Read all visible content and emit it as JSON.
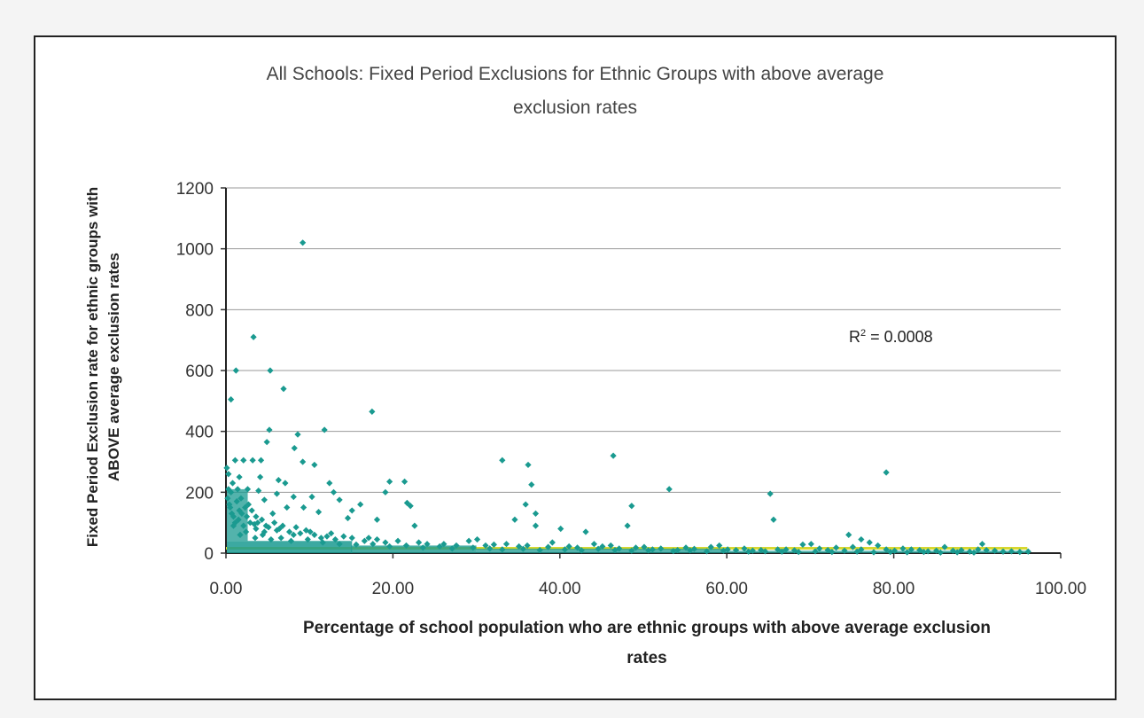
{
  "chart_data": {
    "type": "scatter",
    "title_lines": [
      "All Schools: Fixed Period Exclusions for Ethnic Groups with above average",
      "exclusion rates"
    ],
    "xlabel_lines": [
      "Percentage of school population who are ethnic groups with above average exclusion",
      "rates"
    ],
    "ylabel": "Fixed Period Exclusion rate for ethnic groups with ABOVE average exclusion rates",
    "xlim": [
      0,
      100
    ],
    "ylim": [
      0,
      1200
    ],
    "x_ticks": [
      "0.00",
      "20.00",
      "40.00",
      "60.00",
      "80.00",
      "100.00"
    ],
    "y_ticks": [
      "0",
      "200",
      "400",
      "600",
      "800",
      "1000",
      "1200"
    ],
    "grid": "horizontal",
    "legend": "none",
    "annotation": {
      "prefix": "R",
      "superscript": "2",
      "suffix": " = 0.0008"
    },
    "trendline": {
      "from": [
        0,
        16
      ],
      "to": [
        96,
        16
      ],
      "color": "#d8d830"
    },
    "marker_color": "#1a9a90",
    "series": [
      {
        "values": [
          [
            9.2,
            1020
          ],
          [
            3.3,
            710
          ],
          [
            1.2,
            600
          ],
          [
            5.3,
            600
          ],
          [
            6.9,
            540
          ],
          [
            0.6,
            505
          ],
          [
            17.5,
            465
          ],
          [
            5.2,
            405
          ],
          [
            11.8,
            405
          ],
          [
            8.6,
            390
          ],
          [
            4.9,
            365
          ],
          [
            8.2,
            345
          ],
          [
            1.1,
            305
          ],
          [
            2.1,
            305
          ],
          [
            3.2,
            305
          ],
          [
            4.2,
            305
          ],
          [
            9.2,
            300
          ],
          [
            10.6,
            290
          ],
          [
            33.1,
            305
          ],
          [
            36.2,
            290
          ],
          [
            46.4,
            320
          ],
          [
            79.1,
            265
          ],
          [
            19.6,
            235
          ],
          [
            21.4,
            235
          ],
          [
            36.6,
            225
          ],
          [
            7.1,
            230
          ],
          [
            12.4,
            230
          ],
          [
            6.3,
            240
          ],
          [
            4.1,
            250
          ],
          [
            1.6,
            250
          ],
          [
            53.1,
            210
          ],
          [
            65.2,
            195
          ],
          [
            12.9,
            200
          ],
          [
            19.1,
            200
          ],
          [
            0.3,
            210
          ],
          [
            2.6,
            210
          ],
          [
            3.9,
            205
          ],
          [
            6.1,
            195
          ],
          [
            8.1,
            185
          ],
          [
            4.6,
            175
          ],
          [
            10.3,
            185
          ],
          [
            13.6,
            175
          ],
          [
            21.7,
            165
          ],
          [
            22.1,
            155
          ],
          [
            35.9,
            160
          ],
          [
            37.1,
            130
          ],
          [
            48.6,
            155
          ],
          [
            16.1,
            160
          ],
          [
            15.1,
            140
          ],
          [
            9.3,
            150
          ],
          [
            7.3,
            150
          ],
          [
            1.6,
            140
          ],
          [
            1.8,
            180
          ],
          [
            2.7,
            160
          ],
          [
            3.6,
            120
          ],
          [
            5.6,
            130
          ],
          [
            11.1,
            135
          ],
          [
            14.6,
            115
          ],
          [
            18.1,
            110
          ],
          [
            22.6,
            90
          ],
          [
            34.6,
            110
          ],
          [
            37.1,
            90
          ],
          [
            40.1,
            80
          ],
          [
            43.1,
            70
          ],
          [
            48.1,
            90
          ],
          [
            65.6,
            110
          ],
          [
            74.6,
            60
          ],
          [
            76.1,
            45
          ],
          [
            90.6,
            30
          ],
          [
            1.1,
            100
          ],
          [
            2.1,
            90
          ],
          [
            3.6,
            80
          ],
          [
            4.6,
            70
          ],
          [
            6.1,
            75
          ],
          [
            8.1,
            60
          ],
          [
            10.1,
            70
          ],
          [
            12.1,
            55
          ],
          [
            15.1,
            50
          ],
          [
            18.1,
            45
          ],
          [
            20.6,
            40
          ],
          [
            23.1,
            35
          ],
          [
            26.1,
            30
          ],
          [
            29.1,
            40
          ],
          [
            31.1,
            25
          ],
          [
            33.6,
            30
          ],
          [
            36.1,
            25
          ],
          [
            38.6,
            20
          ],
          [
            41.1,
            22
          ],
          [
            44.1,
            30
          ],
          [
            46.1,
            25
          ],
          [
            50.1,
            20
          ],
          [
            52.1,
            15
          ],
          [
            55.1,
            18
          ],
          [
            58.1,
            20
          ],
          [
            60.1,
            12
          ],
          [
            62.1,
            15
          ],
          [
            64.1,
            10
          ],
          [
            67.1,
            12
          ],
          [
            69.1,
            28
          ],
          [
            71.1,
            15
          ],
          [
            73.1,
            18
          ],
          [
            75.1,
            20
          ],
          [
            77.1,
            35
          ],
          [
            79.1,
            12
          ],
          [
            81.1,
            15
          ],
          [
            83.1,
            10
          ],
          [
            85.1,
            8
          ],
          [
            86.1,
            20
          ],
          [
            88.1,
            10
          ],
          [
            90.1,
            12
          ],
          [
            92.1,
            8
          ],
          [
            94.1,
            6
          ],
          [
            96.1,
            5
          ],
          [
            0.2,
            180
          ],
          [
            0.4,
            160
          ],
          [
            0.5,
            150
          ],
          [
            0.7,
            130
          ],
          [
            0.9,
            120
          ],
          [
            1.3,
            170
          ],
          [
            1.5,
            110
          ],
          [
            1.9,
            130
          ],
          [
            2.3,
            150
          ],
          [
            2.5,
            120
          ],
          [
            2.9,
            100
          ],
          [
            3.1,
            140
          ],
          [
            3.4,
            95
          ],
          [
            3.8,
            100
          ],
          [
            4.3,
            110
          ],
          [
            4.8,
            90
          ],
          [
            5.1,
            85
          ],
          [
            5.8,
            100
          ],
          [
            6.4,
            80
          ],
          [
            6.8,
            90
          ],
          [
            7.6,
            70
          ],
          [
            8.4,
            85
          ],
          [
            8.9,
            65
          ],
          [
            9.6,
            75
          ],
          [
            10.6,
            60
          ],
          [
            11.4,
            50
          ],
          [
            12.6,
            65
          ],
          [
            13.1,
            45
          ],
          [
            14.1,
            55
          ],
          [
            16.6,
            40
          ],
          [
            17.1,
            50
          ],
          [
            19.1,
            35
          ],
          [
            24.1,
            30
          ],
          [
            27.6,
            25
          ],
          [
            30.1,
            45
          ],
          [
            32.1,
            28
          ],
          [
            35.1,
            22
          ],
          [
            39.1,
            35
          ],
          [
            42.1,
            18
          ],
          [
            45.1,
            22
          ],
          [
            47.1,
            15
          ],
          [
            49.1,
            18
          ],
          [
            51.1,
            12
          ],
          [
            54.1,
            10
          ],
          [
            56.1,
            14
          ],
          [
            59.1,
            25
          ],
          [
            61.1,
            10
          ],
          [
            63.1,
            8
          ],
          [
            66.1,
            12
          ],
          [
            68.1,
            9
          ],
          [
            70.1,
            30
          ],
          [
            72.1,
            10
          ],
          [
            74.1,
            8
          ],
          [
            76.1,
            12
          ],
          [
            78.1,
            25
          ],
          [
            80.1,
            8
          ],
          [
            82.1,
            12
          ],
          [
            84.1,
            6
          ],
          [
            87.1,
            8
          ],
          [
            89.1,
            5
          ],
          [
            91.1,
            10
          ],
          [
            93.1,
            5
          ],
          [
            95.1,
            4
          ],
          [
            0.1,
            280
          ],
          [
            0.3,
            260
          ],
          [
            0.8,
            230
          ],
          [
            1.4,
            210
          ],
          [
            0.6,
            200
          ],
          [
            0.9,
            90
          ],
          [
            1.7,
            60
          ],
          [
            2.4,
            70
          ],
          [
            3.5,
            50
          ],
          [
            4.4,
            60
          ],
          [
            5.4,
            45
          ],
          [
            6.6,
            50
          ],
          [
            7.8,
            40
          ],
          [
            9.8,
            45
          ],
          [
            11.6,
            35
          ],
          [
            13.6,
            30
          ],
          [
            15.6,
            28
          ],
          [
            17.6,
            30
          ],
          [
            19.6,
            22
          ],
          [
            21.6,
            25
          ],
          [
            23.6,
            18
          ],
          [
            25.6,
            22
          ],
          [
            27.1,
            15
          ],
          [
            29.6,
            18
          ],
          [
            31.6,
            15
          ],
          [
            33.1,
            12
          ],
          [
            35.6,
            14
          ],
          [
            37.6,
            10
          ],
          [
            40.6,
            12
          ],
          [
            42.6,
            9
          ],
          [
            44.6,
            14
          ],
          [
            46.6,
            10
          ],
          [
            48.6,
            8
          ],
          [
            50.6,
            9
          ],
          [
            53.6,
            7
          ],
          [
            55.6,
            9
          ],
          [
            57.6,
            6
          ],
          [
            59.6,
            8
          ],
          [
            62.6,
            5
          ],
          [
            64.6,
            6
          ],
          [
            66.6,
            5
          ],
          [
            68.6,
            4
          ],
          [
            70.6,
            6
          ],
          [
            72.6,
            4
          ],
          [
            75.6,
            5
          ],
          [
            77.6,
            3
          ],
          [
            79.6,
            4
          ],
          [
            81.6,
            3
          ],
          [
            83.6,
            4
          ],
          [
            85.6,
            2
          ],
          [
            87.6,
            3
          ],
          [
            89.6,
            2
          ]
        ]
      }
    ]
  }
}
